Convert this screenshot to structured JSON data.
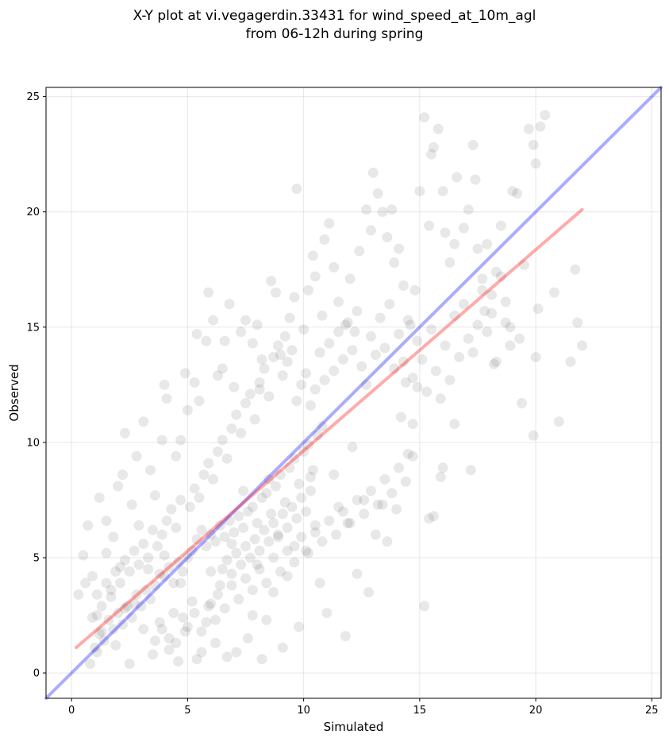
{
  "chart_data": {
    "type": "scatter",
    "title_lines": [
      "X-Y plot at vi.vegagerdin.33431 for wind_speed_at_10m_agl",
      "from 06-12h during spring"
    ],
    "xlabel": "Simulated",
    "ylabel": "Observed",
    "xlim": [
      -1.1,
      25.4
    ],
    "ylim": [
      -1.1,
      25.4
    ],
    "xticks": [
      0,
      5,
      10,
      15,
      20,
      25
    ],
    "yticks": [
      0,
      5,
      10,
      15,
      20,
      25
    ],
    "grid": true,
    "marker_color": "#000000",
    "marker_alpha": 0.09,
    "points": [
      [
        0.3,
        3.4
      ],
      [
        0.5,
        5.1
      ],
      [
        0.7,
        6.4
      ],
      [
        0.8,
        0.4
      ],
      [
        0.6,
        3.9
      ],
      [
        1.1,
        2.5
      ],
      [
        1.2,
        7.6
      ],
      [
        1.5,
        6.6
      ],
      [
        1.8,
        5.9
      ],
      [
        2.0,
        8.1
      ],
      [
        2.3,
        10.4
      ],
      [
        2.2,
        8.6
      ],
      [
        2.6,
        7.3
      ],
      [
        2.8,
        9.4
      ],
      [
        3.1,
        10.9
      ],
      [
        3.4,
        8.8
      ],
      [
        3.6,
        7.7
      ],
      [
        3.9,
        10.1
      ],
      [
        4.0,
        12.5
      ],
      [
        4.1,
        11.9
      ],
      [
        4.5,
        9.4
      ],
      [
        4.7,
        10.1
      ],
      [
        4.9,
        13.0
      ],
      [
        5.0,
        11.4
      ],
      [
        5.3,
        12.6
      ],
      [
        5.5,
        11.8
      ],
      [
        5.4,
        14.7
      ],
      [
        5.8,
        14.4
      ],
      [
        5.9,
        16.5
      ],
      [
        6.1,
        15.3
      ],
      [
        6.3,
        12.9
      ],
      [
        6.5,
        13.2
      ],
      [
        6.6,
        14.4
      ],
      [
        6.8,
        16.0
      ],
      [
        7.0,
        12.4
      ],
      [
        7.3,
        14.8
      ],
      [
        7.5,
        15.3
      ],
      [
        7.8,
        14.3
      ],
      [
        8.0,
        15.1
      ],
      [
        8.2,
        13.6
      ],
      [
        8.1,
        12.3
      ],
      [
        8.6,
        17.0
      ],
      [
        8.8,
        16.5
      ],
      [
        9.0,
        13.8
      ],
      [
        9.2,
        14.6
      ],
      [
        9.4,
        15.4
      ],
      [
        9.6,
        16.3
      ],
      [
        9.7,
        21.0
      ],
      [
        10.0,
        14.9
      ],
      [
        10.2,
        16.6
      ],
      [
        10.4,
        18.1
      ],
      [
        10.5,
        17.2
      ],
      [
        10.8,
        15.5
      ],
      [
        10.9,
        18.8
      ],
      [
        11.1,
        19.5
      ],
      [
        11.3,
        17.6
      ],
      [
        11.5,
        16.1
      ],
      [
        11.8,
        15.1
      ],
      [
        12.0,
        17.1
      ],
      [
        12.2,
        14.8
      ],
      [
        12.4,
        18.3
      ],
      [
        12.7,
        20.1
      ],
      [
        12.9,
        19.2
      ],
      [
        13.0,
        21.7
      ],
      [
        13.2,
        20.8
      ],
      [
        13.4,
        20.0
      ],
      [
        13.6,
        18.9
      ],
      [
        13.8,
        20.1
      ],
      [
        13.9,
        17.8
      ],
      [
        14.1,
        18.4
      ],
      [
        14.3,
        16.8
      ],
      [
        14.6,
        15.1
      ],
      [
        14.8,
        16.6
      ],
      [
        15.0,
        20.9
      ],
      [
        15.2,
        24.1
      ],
      [
        15.4,
        19.4
      ],
      [
        15.6,
        22.8
      ],
      [
        15.5,
        22.5
      ],
      [
        15.8,
        23.6
      ],
      [
        16.0,
        20.9
      ],
      [
        16.1,
        19.1
      ],
      [
        16.3,
        17.8
      ],
      [
        16.5,
        18.6
      ],
      [
        16.6,
        21.5
      ],
      [
        16.9,
        19.3
      ],
      [
        17.1,
        20.1
      ],
      [
        17.3,
        22.9
      ],
      [
        17.4,
        21.4
      ],
      [
        17.5,
        18.4
      ],
      [
        17.7,
        17.1
      ],
      [
        17.9,
        18.6
      ],
      [
        18.1,
        16.4
      ],
      [
        18.3,
        17.4
      ],
      [
        18.5,
        19.4
      ],
      [
        18.7,
        15.2
      ],
      [
        19.0,
        20.9
      ],
      [
        19.2,
        20.8
      ],
      [
        19.3,
        14.5
      ],
      [
        19.5,
        17.7
      ],
      [
        19.7,
        23.6
      ],
      [
        19.9,
        22.9
      ],
      [
        20.0,
        22.1
      ],
      [
        20.2,
        23.7
      ],
      [
        20.4,
        24.2
      ],
      [
        20.1,
        15.8
      ],
      [
        20.0,
        13.7
      ],
      [
        19.9,
        10.3
      ],
      [
        19.4,
        11.7
      ],
      [
        21.0,
        10.9
      ],
      [
        21.5,
        13.5
      ],
      [
        21.8,
        15.2
      ],
      [
        22.0,
        14.2
      ],
      [
        21.7,
        17.5
      ],
      [
        20.8,
        16.5
      ],
      [
        18.9,
        15.0
      ],
      [
        18.2,
        13.4
      ],
      [
        17.8,
        15.7
      ],
      [
        17.2,
        8.8
      ],
      [
        16.5,
        10.8
      ],
      [
        16.0,
        8.9
      ],
      [
        15.9,
        8.5
      ],
      [
        15.6,
        6.8
      ],
      [
        15.4,
        6.7
      ],
      [
        15.2,
        2.9
      ],
      [
        14.9,
        12.4
      ],
      [
        14.7,
        10.8
      ],
      [
        14.5,
        9.5
      ],
      [
        14.4,
        12.6
      ],
      [
        14.2,
        11.1
      ],
      [
        14.0,
        7.1
      ],
      [
        13.6,
        5.7
      ],
      [
        13.4,
        7.3
      ],
      [
        13.1,
        6.0
      ],
      [
        12.8,
        3.5
      ],
      [
        12.6,
        7.5
      ],
      [
        12.3,
        4.3
      ],
      [
        12.1,
        9.8
      ],
      [
        11.9,
        6.5
      ],
      [
        11.8,
        1.6
      ],
      [
        11.5,
        7.2
      ],
      [
        11.3,
        8.6
      ],
      [
        11.0,
        2.6
      ],
      [
        10.7,
        3.9
      ],
      [
        10.5,
        6.4
      ],
      [
        10.3,
        8.5
      ],
      [
        10.1,
        5.3
      ],
      [
        9.8,
        2.0
      ],
      [
        9.6,
        5.5
      ],
      [
        9.3,
        4.2
      ],
      [
        9.1,
        1.1
      ],
      [
        8.9,
        5.9
      ],
      [
        8.7,
        3.5
      ],
      [
        8.5,
        8.4
      ],
      [
        8.4,
        2.3
      ],
      [
        8.2,
        0.6
      ],
      [
        8.0,
        4.7
      ],
      [
        7.8,
        2.5
      ],
      [
        7.6,
        1.5
      ],
      [
        7.4,
        7.9
      ],
      [
        7.1,
        0.9
      ],
      [
        6.9,
        5.6
      ],
      [
        6.7,
        0.7
      ],
      [
        6.4,
        3.8
      ],
      [
        6.2,
        1.3
      ],
      [
        6.0,
        4.4
      ],
      [
        5.8,
        2.2
      ],
      [
        5.6,
        0.9
      ],
      [
        5.4,
        0.6
      ],
      [
        5.2,
        3.1
      ],
      [
        4.9,
        1.8
      ],
      [
        4.7,
        3.9
      ],
      [
        4.6,
        0.5
      ],
      [
        4.4,
        2.6
      ],
      [
        4.2,
        1.5
      ],
      [
        4.0,
        5.1
      ],
      [
        3.8,
        2.2
      ],
      [
        3.5,
        0.8
      ],
      [
        3.3,
        4.5
      ],
      [
        3.1,
        1.9
      ],
      [
        2.9,
        6.4
      ],
      [
        2.7,
        3.0
      ],
      [
        2.5,
        0.4
      ],
      [
        2.3,
        2.8
      ],
      [
        2.1,
        4.6
      ],
      [
        1.9,
        1.2
      ],
      [
        1.7,
        3.6
      ],
      [
        1.5,
        5.2
      ],
      [
        1.3,
        1.8
      ],
      [
        1.1,
        0.9
      ],
      [
        0.9,
        4.2
      ],
      [
        5.0,
        5.0
      ],
      [
        5.2,
        5.3
      ],
      [
        5.4,
        5.8
      ],
      [
        5.6,
        6.2
      ],
      [
        5.8,
        5.5
      ],
      [
        6.0,
        6.0
      ],
      [
        6.2,
        5.7
      ],
      [
        6.4,
        6.4
      ],
      [
        6.6,
        5.9
      ],
      [
        6.8,
        6.6
      ],
      [
        7.0,
        6.1
      ],
      [
        7.2,
        6.8
      ],
      [
        7.4,
        6.3
      ],
      [
        7.6,
        7.0
      ],
      [
        7.8,
        7.2
      ],
      [
        8.0,
        6.5
      ],
      [
        8.2,
        7.6
      ],
      [
        8.4,
        7.8
      ],
      [
        8.6,
        6.9
      ],
      [
        8.8,
        8.1
      ],
      [
        9.0,
        8.6
      ],
      [
        9.2,
        7.4
      ],
      [
        9.4,
        8.9
      ],
      [
        9.6,
        9.3
      ],
      [
        9.8,
        8.2
      ],
      [
        10.0,
        9.6
      ],
      [
        10.2,
        9.9
      ],
      [
        10.4,
        8.8
      ],
      [
        10.6,
        10.3
      ],
      [
        10.8,
        10.7
      ],
      [
        4.0,
        4.2
      ],
      [
        4.2,
        4.6
      ],
      [
        4.4,
        3.9
      ],
      [
        4.6,
        4.8
      ],
      [
        4.8,
        4.4
      ],
      [
        3.6,
        3.8
      ],
      [
        3.8,
        4.3
      ],
      [
        3.4,
        3.2
      ],
      [
        3.2,
        3.6
      ],
      [
        3.0,
        2.9
      ],
      [
        2.8,
        3.4
      ],
      [
        2.6,
        2.4
      ],
      [
        2.4,
        2.9
      ],
      [
        2.2,
        2.1
      ],
      [
        2.0,
        2.6
      ],
      [
        1.8,
        1.9
      ],
      [
        1.6,
        2.3
      ],
      [
        1.4,
        1.4
      ],
      [
        1.2,
        1.7
      ],
      [
        1.0,
        1.1
      ],
      [
        5.1,
        7.2
      ],
      [
        5.3,
        8.0
      ],
      [
        5.5,
        7.6
      ],
      [
        5.7,
        8.6
      ],
      [
        5.9,
        9.1
      ],
      [
        6.1,
        8.4
      ],
      [
        6.3,
        9.6
      ],
      [
        6.5,
        10.1
      ],
      [
        6.7,
        9.3
      ],
      [
        6.9,
        10.6
      ],
      [
        7.1,
        11.2
      ],
      [
        7.3,
        10.4
      ],
      [
        7.5,
        11.7
      ],
      [
        7.7,
        12.1
      ],
      [
        7.9,
        11.0
      ],
      [
        8.1,
        12.6
      ],
      [
        8.3,
        13.2
      ],
      [
        8.5,
        12.0
      ],
      [
        8.7,
        13.7
      ],
      [
        8.9,
        14.2
      ],
      [
        9.1,
        12.9
      ],
      [
        9.3,
        13.5
      ],
      [
        9.5,
        14.0
      ],
      [
        9.7,
        11.8
      ],
      [
        9.9,
        12.5
      ],
      [
        10.1,
        13.0
      ],
      [
        10.3,
        11.6
      ],
      [
        10.5,
        12.3
      ],
      [
        10.7,
        13.9
      ],
      [
        10.9,
        12.7
      ],
      [
        11.1,
        14.3
      ],
      [
        11.3,
        13.1
      ],
      [
        11.5,
        14.8
      ],
      [
        11.7,
        13.6
      ],
      [
        11.9,
        15.2
      ],
      [
        12.1,
        14.0
      ],
      [
        12.3,
        15.7
      ],
      [
        12.5,
        13.3
      ],
      [
        12.7,
        12.5
      ],
      [
        12.9,
        14.6
      ],
      [
        13.1,
        13.8
      ],
      [
        13.3,
        15.4
      ],
      [
        13.5,
        14.1
      ],
      [
        13.7,
        16.0
      ],
      [
        13.9,
        13.2
      ],
      [
        14.1,
        14.7
      ],
      [
        14.3,
        13.5
      ],
      [
        14.5,
        15.3
      ],
      [
        14.7,
        12.8
      ],
      [
        14.9,
        14.4
      ],
      [
        15.1,
        13.6
      ],
      [
        15.3,
        12.2
      ],
      [
        15.5,
        14.9
      ],
      [
        15.7,
        13.1
      ],
      [
        15.9,
        11.9
      ],
      [
        16.1,
        14.2
      ],
      [
        16.3,
        12.7
      ],
      [
        16.5,
        15.5
      ],
      [
        16.7,
        13.7
      ],
      [
        16.9,
        16.0
      ],
      [
        17.1,
        14.5
      ],
      [
        17.3,
        13.9
      ],
      [
        17.5,
        15.1
      ],
      [
        17.7,
        16.6
      ],
      [
        17.9,
        14.8
      ],
      [
        18.1,
        15.6
      ],
      [
        18.3,
        13.5
      ],
      [
        18.5,
        17.2
      ],
      [
        18.7,
        16.1
      ],
      [
        18.9,
        14.2
      ],
      [
        3.9,
        6.0
      ],
      [
        4.1,
        6.6
      ],
      [
        4.3,
        7.1
      ],
      [
        4.5,
        6.3
      ],
      [
        4.7,
        7.5
      ],
      [
        3.7,
        5.5
      ],
      [
        3.5,
        6.2
      ],
      [
        3.3,
        5.0
      ],
      [
        3.1,
        5.6
      ],
      [
        2.9,
        4.7
      ],
      [
        2.7,
        5.3
      ],
      [
        2.5,
        4.4
      ],
      [
        2.3,
        4.9
      ],
      [
        2.1,
        3.9
      ],
      [
        1.9,
        4.4
      ],
      [
        1.7,
        3.3
      ],
      [
        1.5,
        3.9
      ],
      [
        1.3,
        2.9
      ],
      [
        1.1,
        3.4
      ],
      [
        0.9,
        2.4
      ],
      [
        6.0,
        3.0
      ],
      [
        6.3,
        3.4
      ],
      [
        6.6,
        2.8
      ],
      [
        6.9,
        3.8
      ],
      [
        7.2,
        3.2
      ],
      [
        7.5,
        4.1
      ],
      [
        7.8,
        3.6
      ],
      [
        8.1,
        4.5
      ],
      [
        8.4,
        3.9
      ],
      [
        8.7,
        5.0
      ],
      [
        9.0,
        4.4
      ],
      [
        9.3,
        5.3
      ],
      [
        9.6,
        4.8
      ],
      [
        9.9,
        5.9
      ],
      [
        10.2,
        5.2
      ],
      [
        10.5,
        6.1
      ],
      [
        10.8,
        5.7
      ],
      [
        11.1,
        6.6
      ],
      [
        11.4,
        6.0
      ],
      [
        11.7,
        7.0
      ],
      [
        12.0,
        6.5
      ],
      [
        12.3,
        7.5
      ],
      [
        12.6,
        6.9
      ],
      [
        12.9,
        7.9
      ],
      [
        13.2,
        7.3
      ],
      [
        13.5,
        8.4
      ],
      [
        13.8,
        7.8
      ],
      [
        14.1,
        8.9
      ],
      [
        14.4,
        8.3
      ],
      [
        14.7,
        9.4
      ],
      [
        5.0,
        2.0
      ],
      [
        5.3,
        2.6
      ],
      [
        5.6,
        1.8
      ],
      [
        5.9,
        2.9
      ],
      [
        6.2,
        2.3
      ],
      [
        4.5,
        1.3
      ],
      [
        4.8,
        2.4
      ],
      [
        4.2,
        1.0
      ],
      [
        3.9,
        1.9
      ],
      [
        3.6,
        1.4
      ],
      [
        6.5,
        4.5
      ],
      [
        6.7,
        4.9
      ],
      [
        6.9,
        4.3
      ],
      [
        7.1,
        5.2
      ],
      [
        7.3,
        4.7
      ],
      [
        7.5,
        5.5
      ],
      [
        7.7,
        5.0
      ],
      [
        7.9,
        5.8
      ],
      [
        8.1,
        5.3
      ],
      [
        8.3,
        6.2
      ],
      [
        8.5,
        5.7
      ],
      [
        8.7,
        6.5
      ],
      [
        8.9,
        6.0
      ],
      [
        9.1,
        6.9
      ],
      [
        9.3,
        6.3
      ],
      [
        9.5,
        7.2
      ],
      [
        9.7,
        6.7
      ],
      [
        9.9,
        7.6
      ],
      [
        10.1,
        7.0
      ],
      [
        10.3,
        7.9
      ]
    ],
    "identity_line": {
      "x": [
        -1.1,
        25.4
      ],
      "y": [
        -1.1,
        25.4
      ],
      "color": "#0000ff",
      "alpha": 0.33
    },
    "fit_line": {
      "x": [
        0.2,
        22.0
      ],
      "y": [
        1.1,
        20.1
      ],
      "color": "#ff0000",
      "alpha": 0.33
    }
  }
}
